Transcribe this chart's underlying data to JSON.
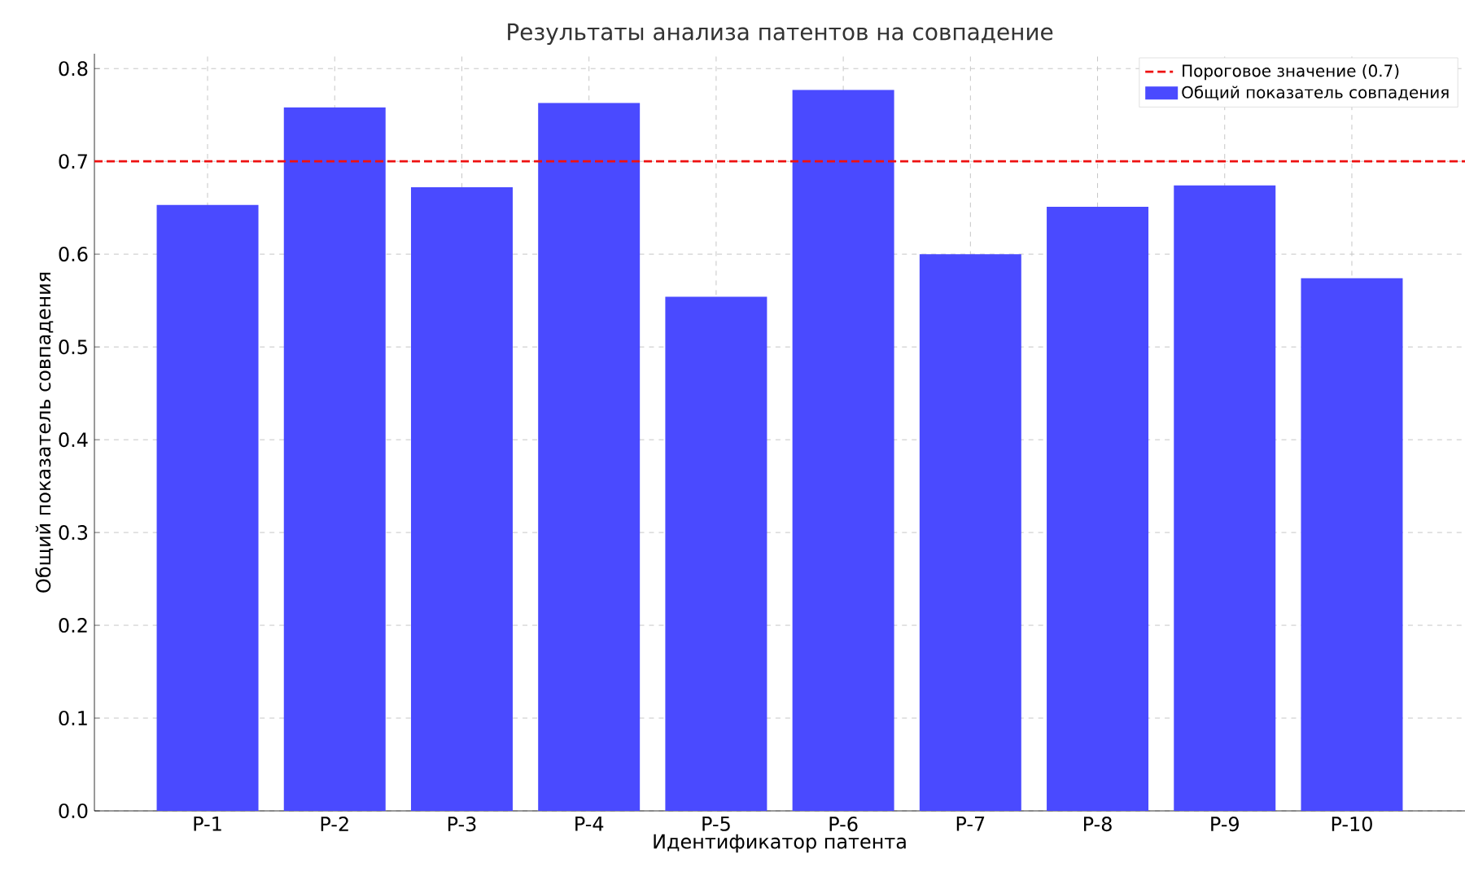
{
  "chart_data": {
    "type": "bar",
    "title": "Результаты анализа патентов на совпадение",
    "xlabel": "Идентификатор патента",
    "ylabel": "Общий показатель совпадения",
    "categories": [
      "P-1",
      "P-2",
      "P-3",
      "P-4",
      "P-5",
      "P-6",
      "P-7",
      "P-8",
      "P-9",
      "P-10"
    ],
    "series": [
      {
        "name": "Общий показатель совпадения",
        "color": "#4a4aff",
        "values": [
          0.653,
          0.758,
          0.672,
          0.763,
          0.554,
          0.777,
          0.6,
          0.651,
          0.674,
          0.574
        ]
      }
    ],
    "ylim": [
      0,
      0.816
    ],
    "yticks": [
      {
        "value": 0,
        "label": "0.0"
      },
      0.1,
      0.2,
      0.3,
      0.4,
      0.5,
      0.6,
      0.7,
      0.8
    ],
    "ref_lines": [
      {
        "axis": "y",
        "value": 0.7,
        "label": "Пороговое значение (0.7)",
        "color": "#ee1111",
        "line_style": "dashed"
      }
    ],
    "grid": true,
    "legend": "top right"
  }
}
